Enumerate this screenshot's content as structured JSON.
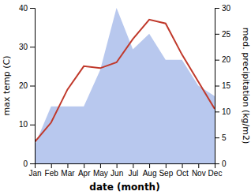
{
  "chart_data": {
    "type": "line",
    "categories": [
      "Jan",
      "Feb",
      "Mar",
      "Apr",
      "May",
      "Jun",
      "Jul",
      "Aug",
      "Sep",
      "Oct",
      "Nov",
      "Dec"
    ],
    "xlabel": "date (month)",
    "ylabel": "max temp (C)",
    "y2label": "med. precipitation (kg/m2)",
    "ylim": [
      0,
      40
    ],
    "yticks": [
      0,
      10,
      20,
      30,
      40
    ],
    "y2lim": [
      0,
      30
    ],
    "y2ticks": [
      0,
      5,
      10,
      15,
      20,
      25,
      30
    ],
    "grid": false,
    "series": [
      {
        "type": "area",
        "axis": "y2",
        "color": "#b8c8ee",
        "values": [
          3.5,
          11,
          11,
          11,
          18,
          30,
          22,
          25,
          20,
          20,
          15,
          13
        ]
      },
      {
        "type": "line",
        "color": "#c0392b",
        "values": [
          5.5,
          10.5,
          19,
          25,
          24.5,
          26,
          32,
          37,
          36,
          28,
          21,
          14
        ]
      }
    ]
  }
}
